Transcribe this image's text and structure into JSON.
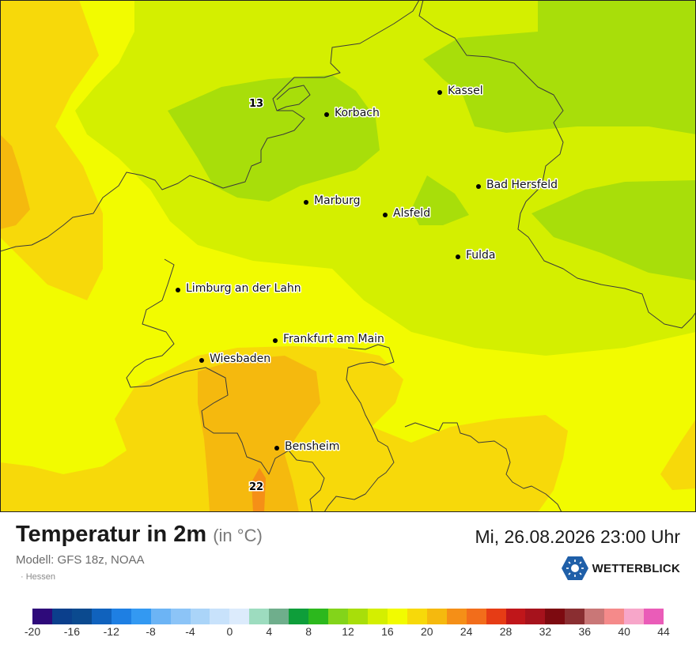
{
  "map": {
    "region": "Hessen",
    "cities": [
      {
        "name": "Kassel"
      },
      {
        "name": "Korbach"
      },
      {
        "name": "Bad Hersfeld"
      },
      {
        "name": "Marburg"
      },
      {
        "name": "Alsfeld"
      },
      {
        "name": "Fulda"
      },
      {
        "name": "Limburg an der Lahn"
      },
      {
        "name": "Frankfurt am Main"
      },
      {
        "name": "Wiesbaden"
      },
      {
        "name": "Bensheim"
      }
    ],
    "extreme_labels": [
      "13",
      "22"
    ]
  },
  "header": {
    "title": "Temperatur in 2m",
    "unit": "(in °C)",
    "model": "Modell: GFS 18z, NOAA",
    "region_tag": "· Hessen",
    "datetime": "Mi, 26.08.2026 23:00 Uhr",
    "brand": "WETTERBLICK"
  },
  "legend": {
    "colors": [
      "#2e0a7a",
      "#0b3f8c",
      "#0b4a8f",
      "#1062bd",
      "#1e7fe3",
      "#3399f2",
      "#6cb4f5",
      "#8cc4f7",
      "#aad4f8",
      "#c8e2fb",
      "#dcebfc",
      "#9ddcbf",
      "#6fae8c",
      "#0e9e3a",
      "#2cb81d",
      "#83d41a",
      "#a8de0a",
      "#d4ef00",
      "#f2fb00",
      "#f7d90a",
      "#f5b90e",
      "#f58f17",
      "#f26d1b",
      "#e63c15",
      "#c0161a",
      "#a6121c",
      "#7d0a10",
      "#8a2e31",
      "#c97777",
      "#f58a8a",
      "#f7a6c9",
      "#ea5cb8"
    ],
    "labels": [
      "-20",
      "-16",
      "-12",
      "-8",
      "-4",
      "0",
      "4",
      "8",
      "12",
      "16",
      "20",
      "24",
      "28",
      "32",
      "36",
      "40",
      "44"
    ]
  }
}
